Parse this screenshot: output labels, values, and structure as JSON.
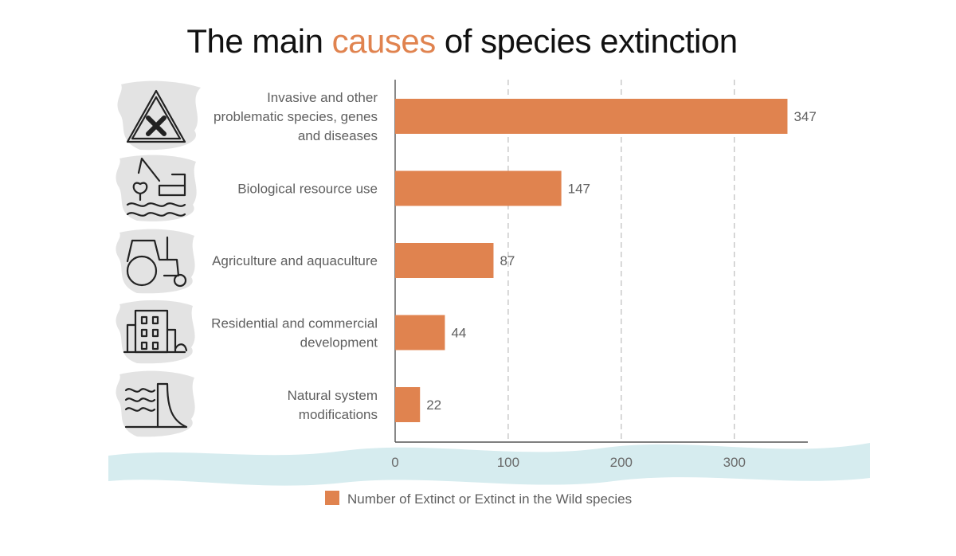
{
  "title": {
    "before": "The main ",
    "accent": "causes",
    "after": " of species extinction"
  },
  "colors": {
    "bar": "#e0834f",
    "accent": "#e0834f",
    "grid": "#bdbdbd",
    "water": "#d6ecef",
    "brush": "#e3e3e3"
  },
  "icons": [
    "warning-triangle-cross-icon",
    "fishing-icon",
    "tractor-icon",
    "building-icon",
    "dam-waves-icon"
  ],
  "chart_data": {
    "type": "bar",
    "orientation": "horizontal",
    "title": "The main causes of species extinction",
    "categories": [
      [
        "Invasive and other",
        "problematic species, genes",
        "and diseases"
      ],
      [
        "Biological resource use"
      ],
      [
        "Agriculture and aquaculture"
      ],
      [
        "Residential and commercial",
        "development"
      ],
      [
        "Natural system",
        "modifications"
      ]
    ],
    "series": [
      {
        "name": "Number of Extinct or Extinct in the Wild species",
        "values": [
          347,
          147,
          87,
          44,
          22
        ]
      }
    ],
    "xlim": [
      0,
      365
    ],
    "xticks": [
      0,
      100,
      200,
      300
    ],
    "grid": true,
    "legend_position": "bottom"
  }
}
